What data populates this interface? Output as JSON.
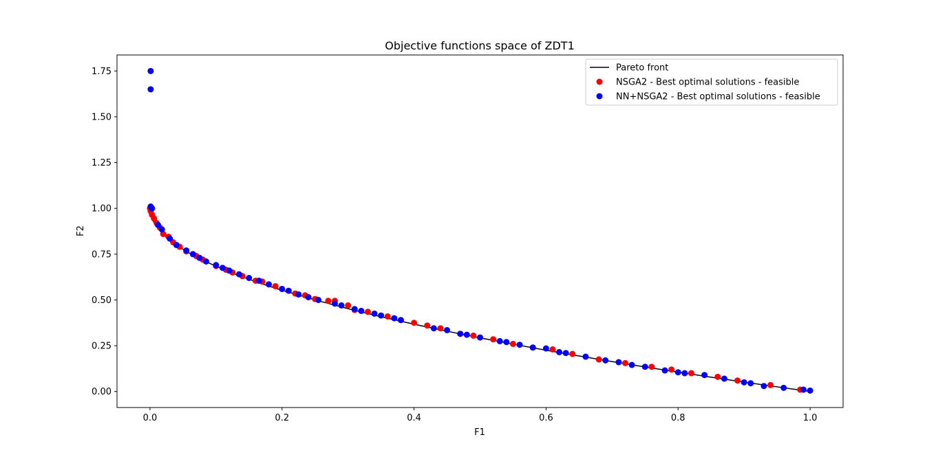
{
  "chart_data": {
    "type": "scatter",
    "title": "Objective functions space of ZDT1",
    "xlabel": "F1",
    "ylabel": "F2",
    "xlim": [
      -0.05,
      1.05
    ],
    "ylim": [
      -0.0875,
      1.8375
    ],
    "x_ticks": [
      0.0,
      0.2,
      0.4,
      0.6,
      0.8,
      1.0
    ],
    "x_tick_labels": [
      "0.0",
      "0.2",
      "0.4",
      "0.6",
      "0.8",
      "1.0"
    ],
    "y_ticks": [
      0.0,
      0.25,
      0.5,
      0.75,
      1.0,
      1.25,
      1.5,
      1.75
    ],
    "y_tick_labels": [
      "0.00",
      "0.25",
      "0.50",
      "0.75",
      "1.00",
      "1.25",
      "1.50",
      "1.75"
    ],
    "grid": false,
    "legend_position": "top-right",
    "series": [
      {
        "name": "Pareto front",
        "kind": "line",
        "color": "#000000",
        "x": [
          0,
          0.0005,
          0.001,
          0.002,
          0.003,
          0.005,
          0.0075,
          0.01,
          0.015,
          0.02,
          0.025,
          0.03,
          0.04,
          0.05,
          0.06,
          0.07,
          0.08,
          0.1,
          0.12,
          0.14,
          0.16,
          0.18,
          0.2,
          0.25,
          0.3,
          0.35,
          0.4,
          0.45,
          0.5,
          0.55,
          0.6,
          0.65,
          0.7,
          0.75,
          0.8,
          0.85,
          0.9,
          0.95,
          1.0
        ],
        "y": [
          1,
          0.9776,
          0.9684,
          0.9553,
          0.9452,
          0.9293,
          0.9134,
          0.9,
          0.8775,
          0.8586,
          0.8419,
          0.8268,
          0.8,
          0.7764,
          0.7551,
          0.7354,
          0.7172,
          0.6838,
          0.6536,
          0.6258,
          0.6,
          0.5757,
          0.5528,
          0.5,
          0.4523,
          0.4084,
          0.3675,
          0.3292,
          0.2929,
          0.2584,
          0.2254,
          0.1938,
          0.1633,
          0.134,
          0.1056,
          0.078,
          0.0513,
          0.0253,
          0
        ]
      },
      {
        "name": "NSGA2 - Best optimal solutions - feasible",
        "kind": "scatter",
        "color": "#ff0000",
        "x": [
          0.0,
          0.001,
          0.003,
          0.006,
          0.01,
          0.015,
          0.02,
          0.028,
          0.035,
          0.045,
          0.055,
          0.07,
          0.08,
          0.1,
          0.115,
          0.125,
          0.14,
          0.16,
          0.17,
          0.19,
          0.2,
          0.22,
          0.235,
          0.25,
          0.27,
          0.28,
          0.3,
          0.31,
          0.33,
          0.36,
          0.38,
          0.4,
          0.42,
          0.44,
          0.47,
          0.49,
          0.52,
          0.55,
          0.58,
          0.61,
          0.64,
          0.68,
          0.72,
          0.76,
          0.79,
          0.82,
          0.86,
          0.89,
          0.94,
          0.985
        ],
        "y": [
          1.0,
          0.985,
          0.965,
          0.945,
          0.92,
          0.895,
          0.86,
          0.845,
          0.815,
          0.79,
          0.765,
          0.74,
          0.72,
          0.685,
          0.665,
          0.65,
          0.63,
          0.605,
          0.6,
          0.575,
          0.56,
          0.535,
          0.525,
          0.505,
          0.495,
          0.495,
          0.47,
          0.445,
          0.435,
          0.41,
          0.39,
          0.375,
          0.36,
          0.345,
          0.315,
          0.305,
          0.285,
          0.26,
          0.24,
          0.23,
          0.205,
          0.175,
          0.155,
          0.135,
          0.12,
          0.1,
          0.08,
          0.06,
          0.035,
          0.01
        ]
      },
      {
        "name": "NN+NSGA2 - Best optimal solutions - feasible",
        "kind": "scatter",
        "color": "#0000ff",
        "x": [
          0.001,
          0.001,
          0.001,
          0.003,
          0.012,
          0.018,
          0.03,
          0.04,
          0.055,
          0.065,
          0.075,
          0.085,
          0.1,
          0.11,
          0.12,
          0.135,
          0.15,
          0.165,
          0.18,
          0.2,
          0.21,
          0.225,
          0.24,
          0.255,
          0.28,
          0.29,
          0.31,
          0.32,
          0.34,
          0.35,
          0.37,
          0.38,
          0.43,
          0.45,
          0.47,
          0.48,
          0.5,
          0.53,
          0.54,
          0.56,
          0.58,
          0.6,
          0.62,
          0.63,
          0.66,
          0.69,
          0.71,
          0.73,
          0.75,
          0.78,
          0.8,
          0.81,
          0.84,
          0.87,
          0.9,
          0.91,
          0.93,
          0.96,
          0.99,
          1.0
        ],
        "y": [
          1.75,
          1.65,
          1.01,
          1.0,
          0.91,
          0.885,
          0.835,
          0.8,
          0.77,
          0.75,
          0.73,
          0.71,
          0.69,
          0.675,
          0.66,
          0.64,
          0.62,
          0.605,
          0.585,
          0.56,
          0.55,
          0.53,
          0.515,
          0.5,
          0.48,
          0.47,
          0.45,
          0.44,
          0.425,
          0.415,
          0.4,
          0.39,
          0.345,
          0.335,
          0.315,
          0.31,
          0.295,
          0.275,
          0.27,
          0.255,
          0.24,
          0.235,
          0.215,
          0.21,
          0.19,
          0.17,
          0.16,
          0.145,
          0.135,
          0.115,
          0.105,
          0.1,
          0.09,
          0.07,
          0.05,
          0.045,
          0.03,
          0.02,
          0.01,
          0.005
        ]
      }
    ]
  }
}
